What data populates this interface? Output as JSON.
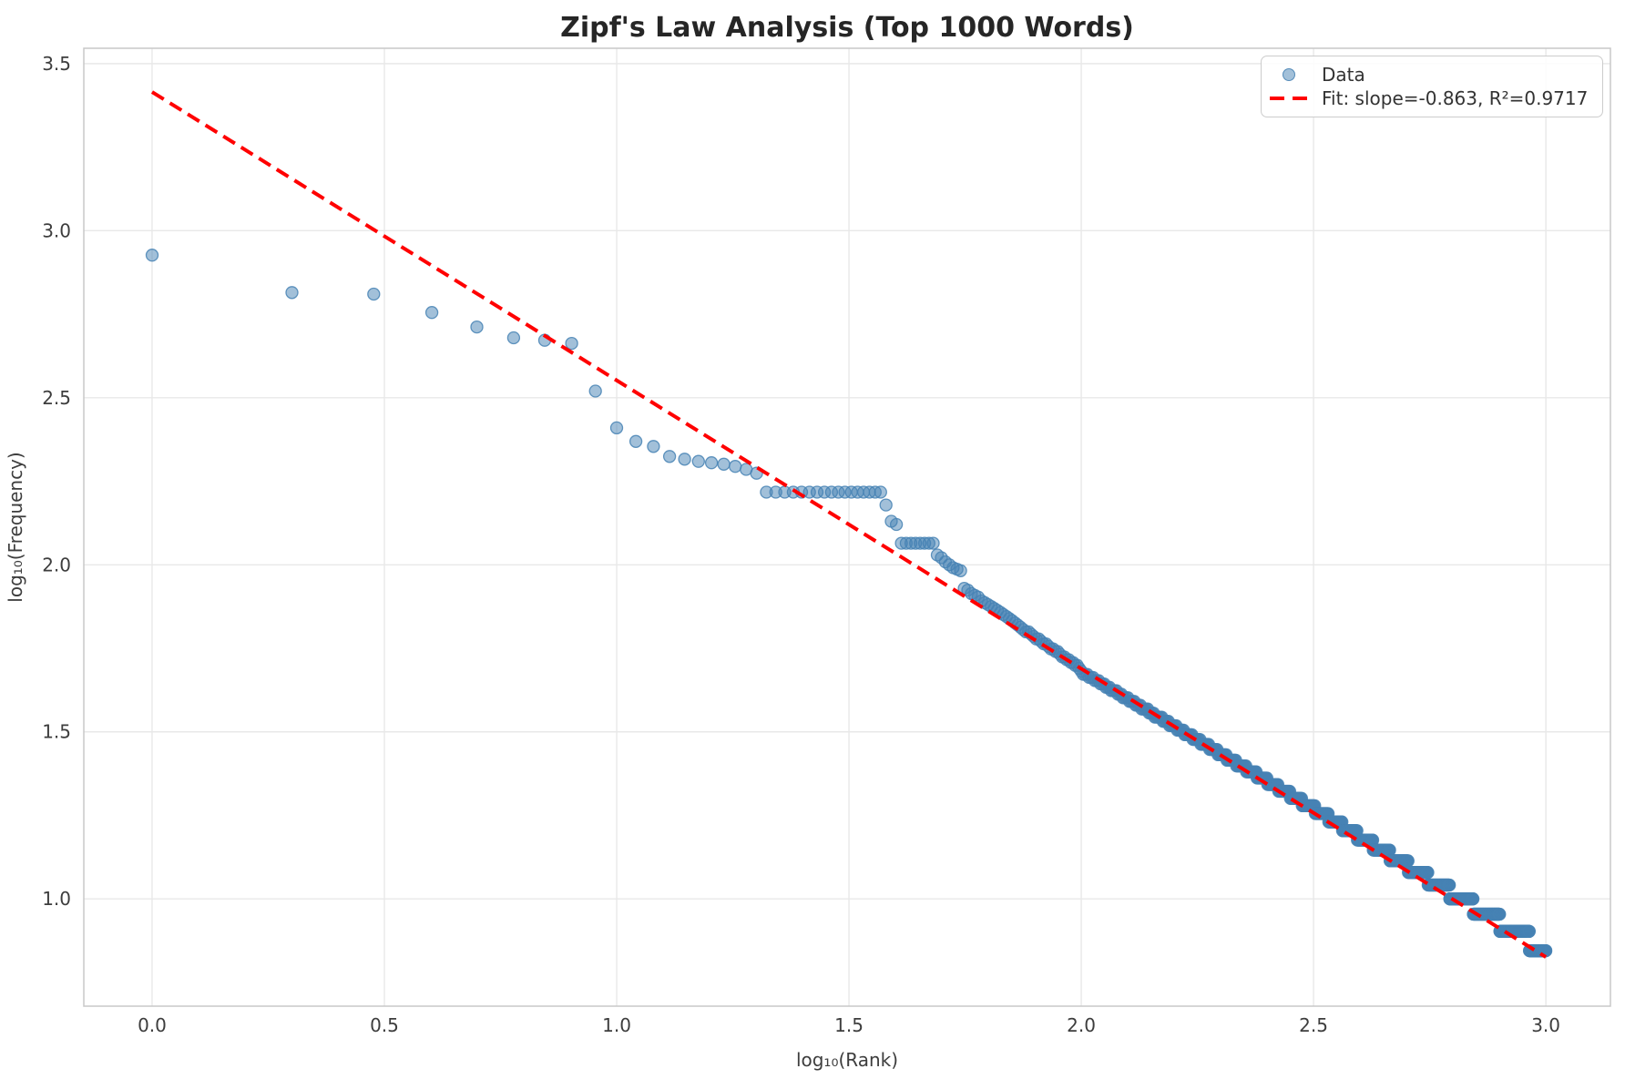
{
  "title": "Zipf's Law Analysis (Top 1000 Words)",
  "legend": {
    "data_label": "Data",
    "fit_label": "Fit: slope=-0.863, R²=0.9717"
  },
  "colors": {
    "scatter_fill": "#4682B4",
    "scatter_fill_alpha": 0.5,
    "scatter_edge_alpha": 0.85,
    "fit_line": "#FF0000",
    "grid": "#E8E8E8",
    "spine": "#C8C8C8",
    "title_text": "#262626",
    "tick_text": "#3D3D3D"
  },
  "chart_data": {
    "type": "scatter",
    "title": "Zipf's Law Analysis (Top 1000 Words)",
    "xlabel": "log₁₀(Rank)",
    "ylabel": "log₁₀(Frequency)",
    "x_definition": "log10 of word rank for ranks 1..1000",
    "y_definition": "log10 of word frequency",
    "grid": true,
    "legend_position": "upper right",
    "xlim": [
      -0.147,
      3.139
    ],
    "ylim": [
      0.679,
      3.546
    ],
    "xticks": {
      "values": [
        0.0,
        0.5,
        1.0,
        1.5,
        2.0,
        2.5,
        3.0
      ],
      "labels": [
        "0.0",
        "0.5",
        "1.0",
        "1.5",
        "2.0",
        "2.5",
        "3.0"
      ]
    },
    "yticks": {
      "values": [
        1.0,
        1.5,
        2.0,
        2.5,
        3.0,
        3.5
      ],
      "labels": [
        "1.0",
        "1.5",
        "2.0",
        "2.5",
        "3.0",
        "3.5"
      ]
    },
    "head_frequencies_ranks_1_20": [
      845,
      653,
      646,
      569,
      515,
      478,
      470,
      460,
      331,
      257,
      234,
      226,
      211,
      207,
      204,
      202,
      200,
      197,
      193,
      188
    ],
    "frequency_runs_rank_ranges": [
      [
        21,
        37,
        165
      ],
      [
        38,
        38,
        151
      ],
      [
        39,
        39,
        135
      ],
      [
        40,
        40,
        132
      ],
      [
        41,
        48,
        116
      ],
      [
        49,
        49,
        107
      ],
      [
        50,
        50,
        105
      ],
      [
        51,
        51,
        102
      ],
      [
        52,
        52,
        100
      ],
      [
        53,
        53,
        98
      ],
      [
        54,
        54,
        97
      ],
      [
        55,
        55,
        96
      ]
    ],
    "tail_model_ranks_56_1000": {
      "note": "log10(freq) piecewise linear in log10(rank), freq rounded to integer (produces stepped tail down to freq 7 at rank 1000)",
      "segments": [
        {
          "from": 1.748,
          "to": 2.0,
          "logf0": 1.93,
          "slope": -0.96
        },
        {
          "from": 2.0,
          "to": 2.5,
          "logf0": 1.68,
          "slope": -0.82
        },
        {
          "from": 2.5,
          "to": 3.001,
          "logf0": 1.27,
          "slope": -0.85
        }
      ]
    },
    "fit": {
      "slope": -0.863,
      "intercept": 3.415,
      "r_squared": 0.9717,
      "x_start": 0.0,
      "x_end": 3.0,
      "style": "dashed"
    }
  }
}
